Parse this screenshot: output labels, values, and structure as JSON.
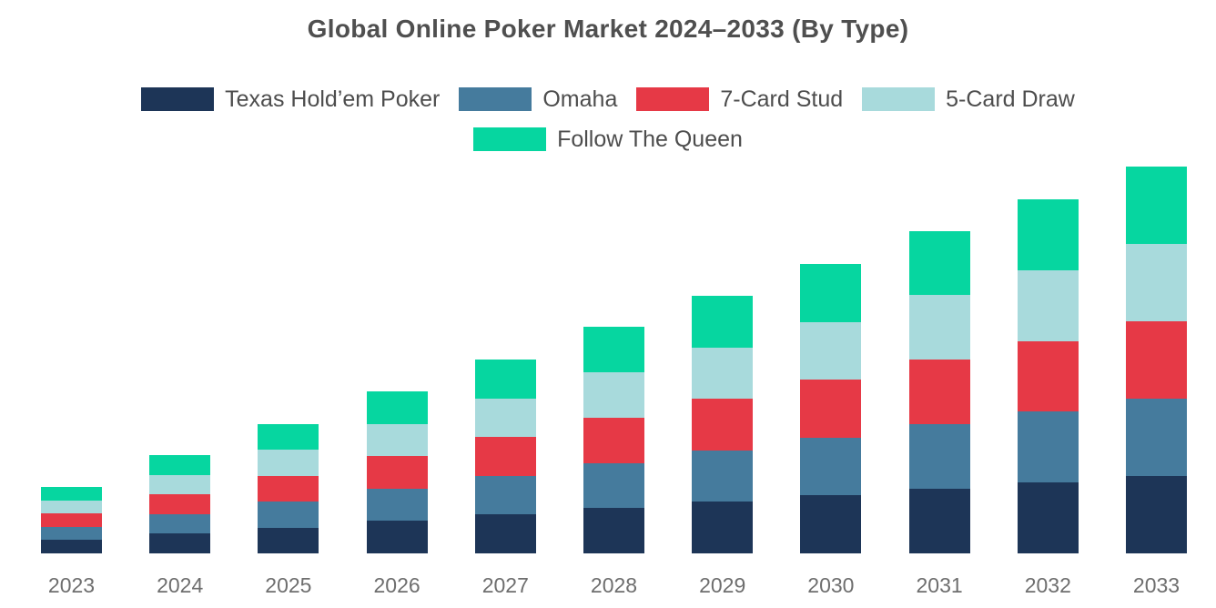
{
  "chart_data": {
    "type": "bar",
    "stacked": true,
    "title": "Global Online Poker Market 2024–2033 (By Type)",
    "categories": [
      "2023",
      "2024",
      "2025",
      "2026",
      "2027",
      "2028",
      "2029",
      "2030",
      "2031",
      "2032",
      "2033"
    ],
    "series": [
      {
        "name": "Texas Hold’em Poker",
        "color": "#1d3557",
        "values": [
          3.44,
          5.08,
          6.7,
          8.36,
          10.02,
          11.7,
          13.32,
          14.96,
          16.68,
          18.3,
          20.0
        ]
      },
      {
        "name": "Omaha",
        "color": "#457b9d",
        "values": [
          3.44,
          5.08,
          6.7,
          8.36,
          10.02,
          11.7,
          13.32,
          14.96,
          16.68,
          18.3,
          20.0
        ]
      },
      {
        "name": "7-Card Stud",
        "color": "#e63946",
        "values": [
          3.44,
          5.08,
          6.7,
          8.36,
          10.02,
          11.7,
          13.32,
          14.96,
          16.68,
          18.3,
          20.0
        ]
      },
      {
        "name": "5-Card Draw",
        "color": "#a8dadc",
        "values": [
          3.44,
          5.08,
          6.7,
          8.36,
          10.02,
          11.7,
          13.32,
          14.96,
          16.68,
          18.3,
          20.0
        ]
      },
      {
        "name": "Follow The Queen",
        "color": "#06d6a0",
        "values": [
          3.44,
          5.08,
          6.7,
          8.36,
          10.02,
          11.7,
          13.32,
          14.96,
          16.68,
          18.3,
          20.0
        ]
      }
    ],
    "stack_order_bottom_to_top": [
      "Texas Hold’em Poker",
      "Omaha",
      "7-Card Stud",
      "5-Card Draw",
      "Follow The Queen"
    ],
    "totals": [
      17.2,
      25.4,
      33.5,
      41.8,
      50.1,
      58.5,
      66.6,
      74.8,
      83.4,
      91.5,
      100
    ],
    "units": "relative market-size index (2033 total = 100); chart displays no numeric y-axis",
    "xlabel": "",
    "ylabel": "",
    "ylim": [
      0,
      100
    ],
    "y_axis_visible": false,
    "gridlines": false,
    "legend_position": "top-center, two rows",
    "legend_rows": [
      [
        "Texas Hold’em Poker",
        "Omaha",
        "7-Card Stud",
        "5-Card Draw"
      ],
      [
        "Follow The Queen"
      ]
    ]
  },
  "colors": {
    "background": "#ffffff",
    "title_text": "#4f4f4f",
    "legend_text": "#4d4d4d",
    "tick_text": "#6e6e6e"
  }
}
